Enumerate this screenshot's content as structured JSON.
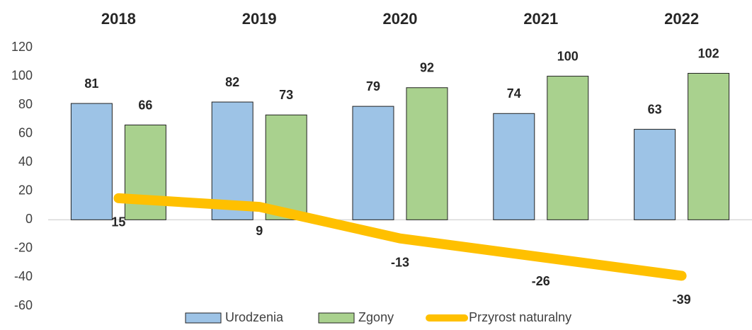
{
  "chart_data": {
    "type": "bar-line",
    "categories": [
      "2018",
      "2019",
      "2020",
      "2021",
      "2022"
    ],
    "series": [
      {
        "name": "Urodzenia",
        "type": "bar",
        "color": "#9dc3e6",
        "values": [
          81,
          82,
          79,
          74,
          63
        ]
      },
      {
        "name": "Zgony",
        "type": "bar",
        "color": "#a9d18e",
        "values": [
          66,
          73,
          92,
          100,
          102
        ]
      },
      {
        "name": "Przyrost naturalny",
        "type": "line",
        "color": "#ffc000",
        "values": [
          15,
          9,
          -13,
          -26,
          -39
        ]
      }
    ],
    "ylim": [
      -60,
      120
    ],
    "yticks": [
      -60,
      -40,
      -20,
      0,
      20,
      40,
      60,
      80,
      100,
      120
    ],
    "legend": "bottom"
  }
}
